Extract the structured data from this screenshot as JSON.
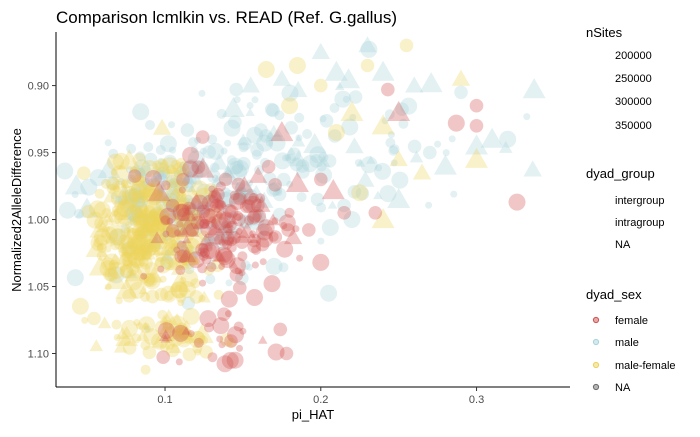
{
  "chart_data": {
    "type": "scatter",
    "title": "Comparison lcmlkin vs. READ (Ref. G.gallus)",
    "xlabel": "pi_HAT",
    "ylabel": "Normalized2AlleleDifference",
    "xlim": [
      0.03,
      0.36
    ],
    "ylim": [
      0.86,
      1.125
    ],
    "y_reversed": true,
    "grid": false,
    "x_ticks": [
      {
        "value": 0.1,
        "label": "0.1"
      },
      {
        "value": 0.2,
        "label": "0.2"
      },
      {
        "value": 0.3,
        "label": "0.3"
      }
    ],
    "y_ticks": [
      {
        "value": 0.9,
        "label": "0.90"
      },
      {
        "value": 0.95,
        "label": "0.95"
      },
      {
        "value": 1.0,
        "label": "1.00"
      },
      {
        "value": 1.05,
        "label": "1.05"
      },
      {
        "value": 1.1,
        "label": "1.10"
      }
    ],
    "legend_placement": "right",
    "legends": {
      "size": {
        "title": "nSites",
        "entries": [
          "200000",
          "250000",
          "300000",
          "350000"
        ]
      },
      "shape": {
        "title": "dyad_group",
        "entries": [
          "intergroup",
          "intragroup",
          "NA"
        ]
      },
      "color": {
        "title": "dyad_sex",
        "entries": [
          {
            "label": "female",
            "color": "#d0524f"
          },
          {
            "label": "male",
            "color": "#a9d3db"
          },
          {
            "label": "male-female",
            "color": "#ecd25b"
          },
          {
            "label": "NA",
            "color": "#6b6b6b"
          }
        ]
      }
    },
    "series": [
      {
        "name": "female",
        "color": "#d0524f",
        "clusters": [
          {
            "cx": 0.135,
            "cy": 1.005,
            "sx": 0.022,
            "sy": 0.022,
            "n": 170
          },
          {
            "cx": 0.13,
            "cy": 1.09,
            "sx": 0.02,
            "sy": 0.01,
            "n": 25
          }
        ],
        "points": [
          {
            "x": 0.175,
            "y": 0.935,
            "shape": "triangle",
            "size": 3
          },
          {
            "x": 0.25,
            "y": 0.92,
            "shape": "triangle",
            "size": 3
          },
          {
            "x": 0.3,
            "y": 0.93,
            "shape": "circle",
            "size": 2
          },
          {
            "x": 0.185,
            "y": 0.973,
            "shape": "triangle",
            "size": 3
          },
          {
            "x": 0.2,
            "y": 0.97,
            "shape": "circle",
            "size": 2
          },
          {
            "x": 0.215,
            "y": 0.995,
            "shape": "circle",
            "size": 2
          },
          {
            "x": 0.235,
            "y": 0.995,
            "shape": "circle",
            "size": 2
          },
          {
            "x": 0.3,
            "y": 0.915,
            "shape": "circle",
            "size": 2
          },
          {
            "x": 0.2,
            "y": 1.032,
            "shape": "circle",
            "size": 3
          },
          {
            "x": 0.326,
            "y": 0.987,
            "shape": "circle",
            "size": 3
          },
          {
            "x": 0.174,
            "y": 1.082,
            "shape": "circle",
            "size": 2
          },
          {
            "x": 0.178,
            "y": 1.1,
            "shape": "circle",
            "size": 2
          },
          {
            "x": 0.145,
            "y": 1.105,
            "shape": "circle",
            "size": 3
          },
          {
            "x": 0.11,
            "y": 1.085,
            "shape": "circle",
            "size": 3
          },
          {
            "x": 0.12,
            "y": 1.03,
            "shape": "circle",
            "size": 3
          },
          {
            "x": 0.243,
            "y": 0.903,
            "shape": "circle",
            "size": 2
          },
          {
            "x": 0.287,
            "y": 0.928,
            "shape": "circle",
            "size": 3
          }
        ]
      },
      {
        "name": "male",
        "color": "#a9d3db",
        "clusters": [
          {
            "cx": 0.115,
            "cy": 0.985,
            "sx": 0.03,
            "sy": 0.03,
            "n": 230
          },
          {
            "cx": 0.2,
            "cy": 0.95,
            "sx": 0.045,
            "sy": 0.03,
            "n": 120
          }
        ],
        "points": [
          {
            "x": 0.24,
            "y": 0.89,
            "shape": "triangle",
            "size": 3
          },
          {
            "x": 0.337,
            "y": 0.903,
            "shape": "triangle",
            "size": 3
          },
          {
            "x": 0.3,
            "y": 0.945,
            "shape": "triangle",
            "size": 3
          },
          {
            "x": 0.31,
            "y": 0.94,
            "shape": "triangle",
            "size": 3
          },
          {
            "x": 0.32,
            "y": 0.94,
            "shape": "circle",
            "size": 3
          },
          {
            "x": 0.25,
            "y": 0.985,
            "shape": "triangle",
            "size": 3
          },
          {
            "x": 0.21,
            "y": 0.89,
            "shape": "triangle",
            "size": 3
          },
          {
            "x": 0.26,
            "y": 0.9,
            "shape": "triangle",
            "size": 2
          },
          {
            "x": 0.23,
            "y": 0.87,
            "shape": "triangle",
            "size": 2
          },
          {
            "x": 0.2,
            "y": 0.875,
            "shape": "triangle",
            "size": 2
          },
          {
            "x": 0.27,
            "y": 0.95,
            "shape": "circle",
            "size": 2
          },
          {
            "x": 0.29,
            "y": 0.905,
            "shape": "circle",
            "size": 2
          },
          {
            "x": 0.28,
            "y": 0.96,
            "shape": "triangle",
            "size": 3
          },
          {
            "x": 0.22,
            "y": 1.0,
            "shape": "circle",
            "size": 3
          },
          {
            "x": 0.205,
            "y": 1.055,
            "shape": "circle",
            "size": 3
          },
          {
            "x": 0.17,
            "y": 1.035,
            "shape": "circle",
            "size": 3
          },
          {
            "x": 0.175,
            "y": 0.895,
            "shape": "triangle",
            "size": 2
          },
          {
            "x": 0.155,
            "y": 0.9,
            "shape": "triangle",
            "size": 2
          }
        ]
      },
      {
        "name": "male-female",
        "color": "#ecd25b",
        "clusters": [
          {
            "cx": 0.09,
            "cy": 1.01,
            "sx": 0.017,
            "sy": 0.027,
            "n": 340
          },
          {
            "cx": 0.1,
            "cy": 1.085,
            "sx": 0.02,
            "sy": 0.013,
            "n": 60
          }
        ],
        "points": [
          {
            "x": 0.165,
            "y": 0.888,
            "shape": "circle",
            "size": 3
          },
          {
            "x": 0.185,
            "y": 0.885,
            "shape": "circle",
            "size": 3
          },
          {
            "x": 0.2,
            "y": 0.9,
            "shape": "circle",
            "size": 2
          },
          {
            "x": 0.22,
            "y": 0.92,
            "shape": "triangle",
            "size": 3
          },
          {
            "x": 0.24,
            "y": 0.93,
            "shape": "triangle",
            "size": 3
          },
          {
            "x": 0.25,
            "y": 0.955,
            "shape": "triangle",
            "size": 2
          },
          {
            "x": 0.265,
            "y": 0.965,
            "shape": "triangle",
            "size": 2
          },
          {
            "x": 0.29,
            "y": 0.895,
            "shape": "triangle",
            "size": 2
          },
          {
            "x": 0.3,
            "y": 0.955,
            "shape": "triangle",
            "size": 3
          },
          {
            "x": 0.24,
            "y": 1.0,
            "shape": "triangle",
            "size": 3
          },
          {
            "x": 0.225,
            "y": 0.98,
            "shape": "circle",
            "size": 3
          },
          {
            "x": 0.23,
            "y": 0.885,
            "shape": "circle",
            "size": 2
          },
          {
            "x": 0.255,
            "y": 0.87,
            "shape": "circle",
            "size": 2
          },
          {
            "x": 0.21,
            "y": 0.935,
            "shape": "circle",
            "size": 3
          },
          {
            "x": 0.18,
            "y": 0.915,
            "shape": "circle",
            "size": 3
          }
        ]
      }
    ]
  }
}
